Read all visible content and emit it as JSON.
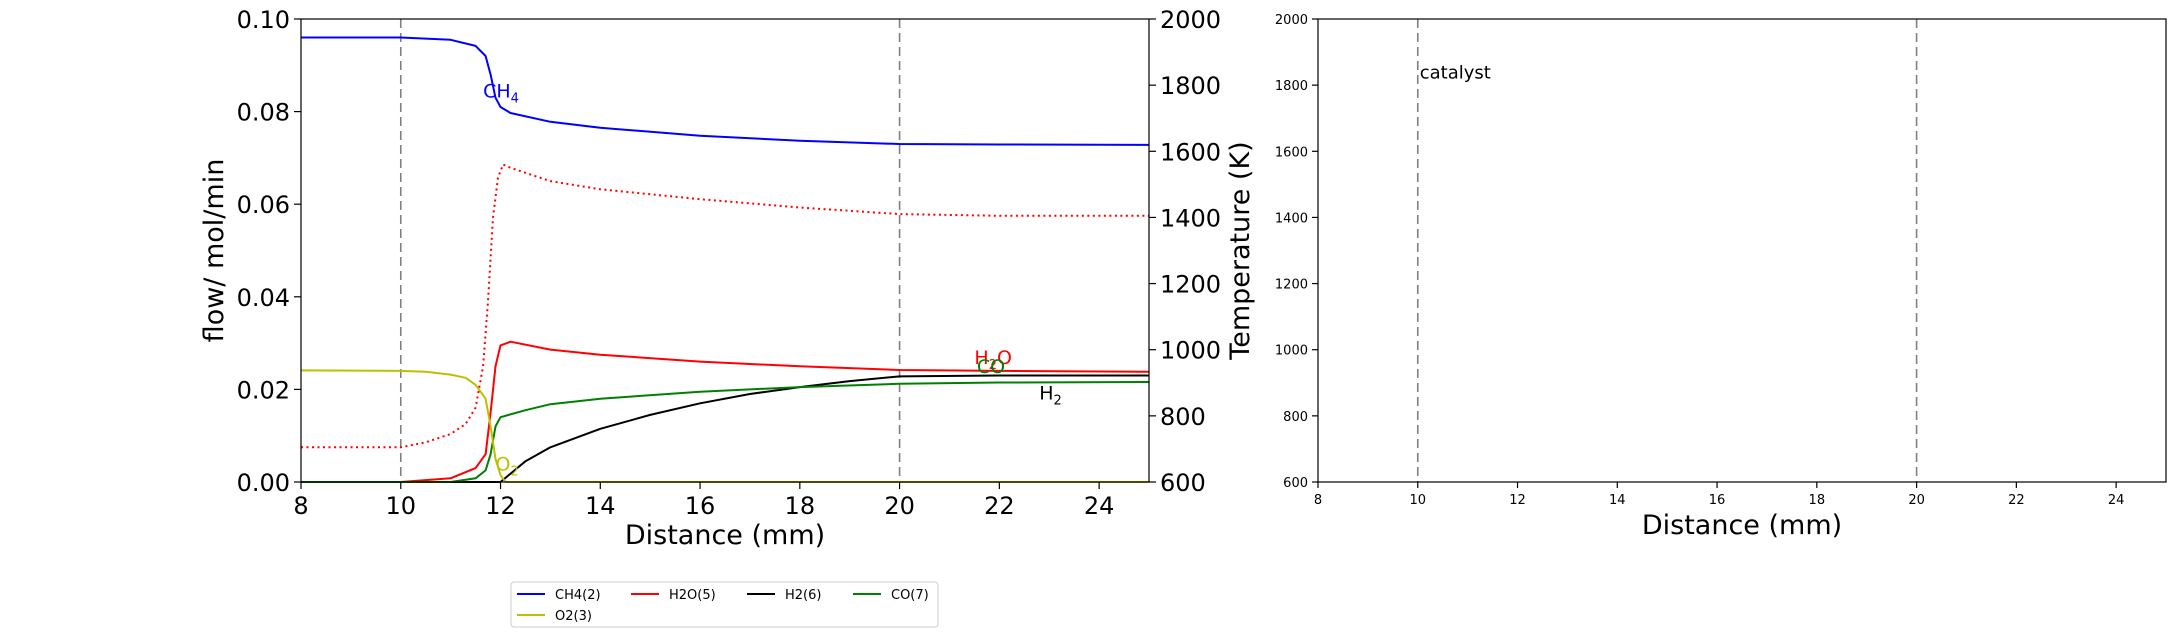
{
  "chart_data": [
    {
      "type": "line",
      "panel": "left",
      "xlabel": "Distance (mm)",
      "ylabel": "flow/ mol/min",
      "y2label": "Temperature (K)",
      "xlim": [
        8,
        25
      ],
      "ylim": [
        0.0,
        0.1
      ],
      "y2lim": [
        600,
        2000
      ],
      "xticks": [
        "8",
        "10",
        "12",
        "14",
        "16",
        "18",
        "20",
        "22",
        "24"
      ],
      "xtick_values": [
        8,
        10,
        12,
        14,
        16,
        18,
        20,
        22,
        24
      ],
      "yticks": [
        "0.00",
        "0.02",
        "0.04",
        "0.06",
        "0.08",
        "0.10"
      ],
      "ytick_values": [
        0.0,
        0.02,
        0.04,
        0.06,
        0.08,
        0.1
      ],
      "y2ticks": [
        "600",
        "800",
        "1000",
        "1200",
        "1400",
        "1600",
        "1800",
        "2000"
      ],
      "y2tick_values": [
        600,
        800,
        1000,
        1200,
        1400,
        1600,
        1800,
        2000
      ],
      "vlines": [
        10,
        20
      ],
      "series": [
        {
          "name": "CH4(2)",
          "color": "#0000ff",
          "style": "solid",
          "axis": "left",
          "x": [
            8,
            10,
            11,
            11.5,
            11.7,
            11.8,
            11.9,
            12.0,
            12.2,
            13,
            14,
            16,
            18,
            20,
            22,
            25
          ],
          "y": [
            0.096,
            0.096,
            0.0955,
            0.0942,
            0.092,
            0.088,
            0.083,
            0.081,
            0.0797,
            0.0778,
            0.0765,
            0.0748,
            0.0737,
            0.073,
            0.0729,
            0.0728
          ]
        },
        {
          "name": "H2O(5)",
          "color": "#ff0000",
          "style": "solid",
          "axis": "left",
          "x": [
            8,
            10,
            11,
            11.5,
            11.7,
            11.8,
            11.9,
            12.0,
            12.2,
            13,
            14,
            16,
            18,
            20,
            22,
            25
          ],
          "y": [
            0.0,
            0.0,
            0.0008,
            0.003,
            0.006,
            0.015,
            0.025,
            0.0295,
            0.0303,
            0.0286,
            0.0275,
            0.026,
            0.025,
            0.0242,
            0.024,
            0.0238
          ]
        },
        {
          "name": "H2(6)",
          "color": "#000000",
          "style": "solid",
          "axis": "left",
          "x": [
            8,
            10,
            11,
            11.5,
            11.8,
            12.0,
            12.5,
            13,
            14,
            15,
            16,
            17,
            18,
            19,
            20,
            22,
            25
          ],
          "y": [
            0.0,
            0.0,
            0.0,
            0.0,
            0.0,
            0.0,
            0.0045,
            0.0075,
            0.0115,
            0.0145,
            0.017,
            0.019,
            0.0205,
            0.0218,
            0.0228,
            0.023,
            0.023
          ]
        },
        {
          "name": "CO(7)",
          "color": "#008000",
          "style": "solid",
          "axis": "left",
          "x": [
            8,
            10,
            11,
            11.5,
            11.7,
            11.8,
            11.9,
            12.0,
            12.5,
            13,
            14,
            16,
            18,
            20,
            22,
            25
          ],
          "y": [
            0.0,
            0.0,
            0.0,
            0.0008,
            0.0025,
            0.006,
            0.012,
            0.014,
            0.0155,
            0.0168,
            0.018,
            0.0195,
            0.0205,
            0.0212,
            0.0215,
            0.0216
          ]
        },
        {
          "name": "O2(3)",
          "color": "#bfbf00",
          "style": "solid",
          "axis": "left",
          "x": [
            8,
            10,
            10.5,
            11,
            11.3,
            11.5,
            11.7,
            11.8,
            11.9,
            12.0,
            12.1,
            13,
            25
          ],
          "y": [
            0.0241,
            0.024,
            0.0238,
            0.0232,
            0.0225,
            0.021,
            0.018,
            0.012,
            0.005,
            0.0015,
            0.0,
            0.0,
            0.0
          ]
        },
        {
          "name": "Temperature",
          "color": "#ff0000",
          "style": "dotted",
          "axis": "right",
          "x": [
            8,
            10,
            10.5,
            11,
            11.3,
            11.5,
            11.65,
            11.75,
            11.85,
            11.95,
            12.05,
            12.2,
            12.5,
            13,
            14,
            16,
            18,
            20,
            22,
            25
          ],
          "y": [
            705,
            705,
            720,
            745,
            775,
            825,
            950,
            1150,
            1400,
            1520,
            1560,
            1550,
            1535,
            1510,
            1485,
            1455,
            1430,
            1410,
            1405,
            1405
          ]
        }
      ],
      "annotations": [
        {
          "base": "CH",
          "sub": "4",
          "x": 11.65,
          "y": 0.083,
          "color": "#0000ff"
        },
        {
          "base": "H",
          "sub": "2",
          "mid": "O",
          "x": 21.5,
          "y": 0.0255,
          "color": "#ff0000"
        },
        {
          "base": "CO",
          "sub": "",
          "x": 21.55,
          "y": 0.0235,
          "color": "#008000"
        },
        {
          "base": "H",
          "sub": "2",
          "x": 22.8,
          "y": 0.0178,
          "color": "#000000"
        },
        {
          "base": "O",
          "sub": "2",
          "x": 11.9,
          "y": 0.0025,
          "color": "#bfbf00"
        }
      ]
    },
    {
      "type": "line",
      "panel": "right",
      "xlabel": "Distance (mm)",
      "xlim": [
        8,
        25
      ],
      "ylim": [
        600,
        2000
      ],
      "xticks": [
        "8",
        "10",
        "12",
        "14",
        "16",
        "18",
        "20",
        "22",
        "24"
      ],
      "xtick_values": [
        8,
        10,
        12,
        14,
        16,
        18,
        20,
        22,
        24
      ],
      "yticks": [
        "600",
        "800",
        "1000",
        "1200",
        "1400",
        "1600",
        "1800",
        "2000"
      ],
      "ytick_values": [
        600,
        800,
        1000,
        1200,
        1400,
        1600,
        1800,
        2000
      ],
      "vlines": [
        10,
        20
      ],
      "annotation": {
        "text": "catalyst",
        "x": 10,
        "y": 1820
      }
    }
  ],
  "legend": {
    "location": "bottom-center",
    "entries": [
      {
        "label": "CH4(2)",
        "color": "#0000ff"
      },
      {
        "label": "H2O(5)",
        "color": "#ff0000"
      },
      {
        "label": "H2(6)",
        "color": "#000000"
      },
      {
        "label": "CO(7)",
        "color": "#008000"
      },
      {
        "label": "O2(3)",
        "color": "#bfbf00"
      }
    ]
  }
}
